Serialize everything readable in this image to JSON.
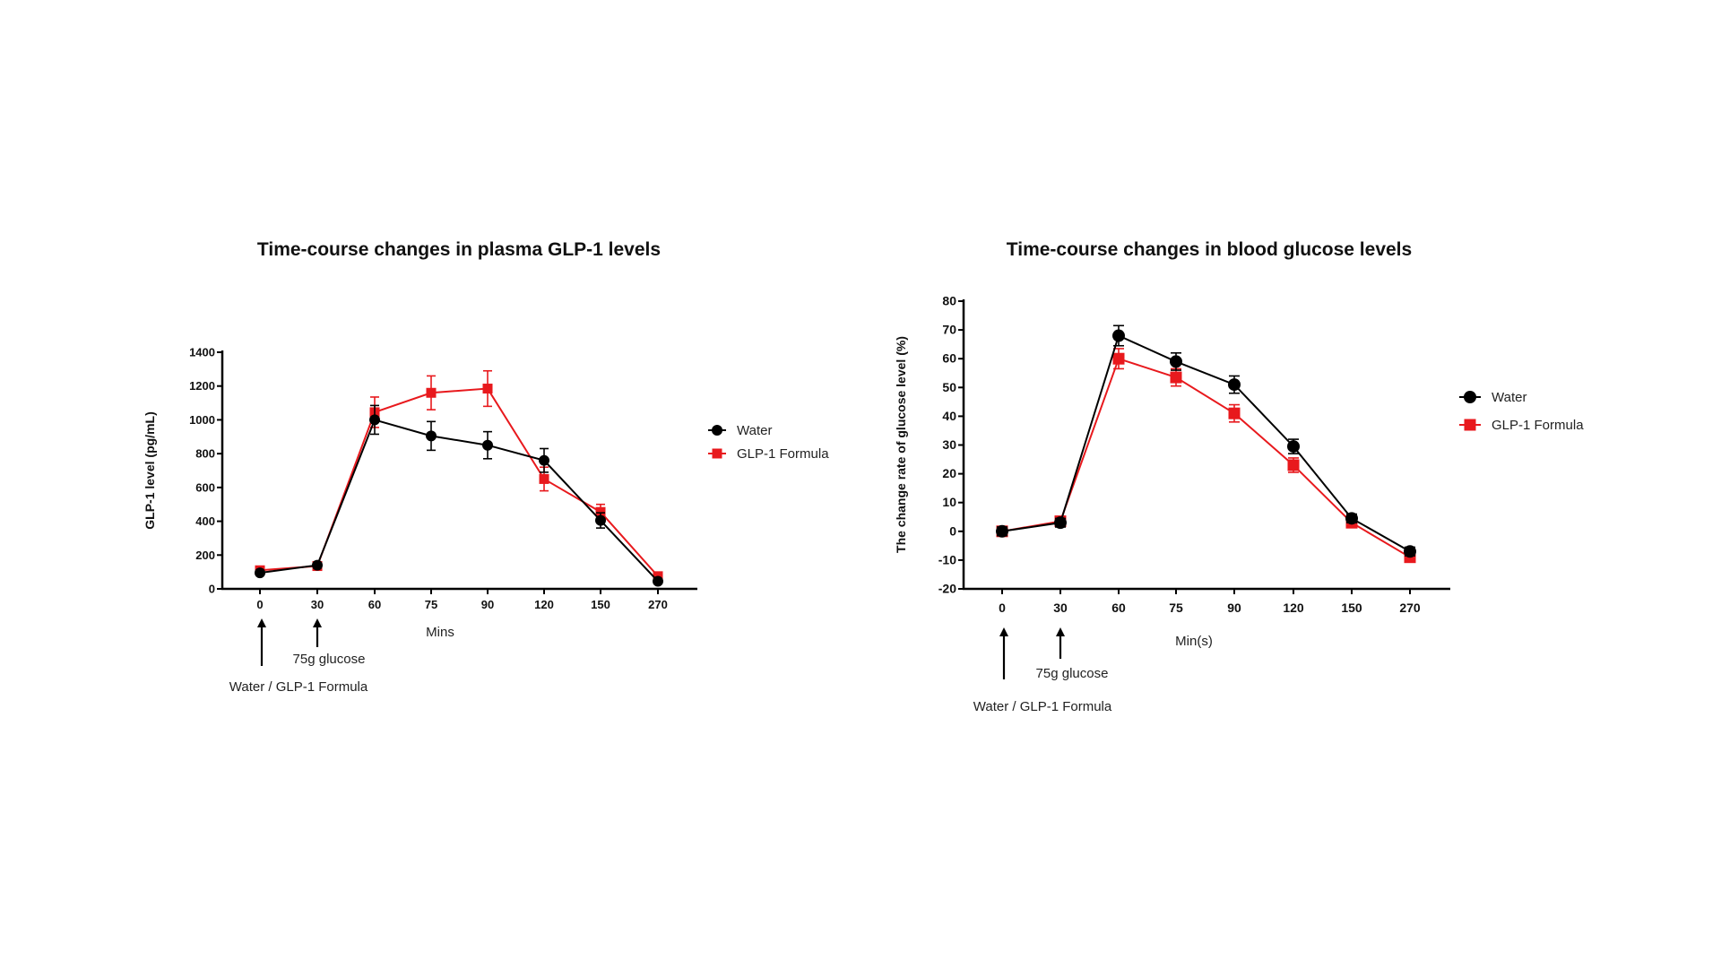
{
  "chart_data": [
    {
      "type": "line",
      "title": "Time-course changes in plasma GLP-1 levels",
      "xlabel": "Mins",
      "ylabel": "GLP-1 level (pg/mL)",
      "categories": [
        "0",
        "30",
        "60",
        "75",
        "90",
        "120",
        "150",
        "270"
      ],
      "ylim": [
        0,
        1400
      ],
      "yticks": [
        0,
        200,
        400,
        600,
        800,
        1000,
        1200,
        1400
      ],
      "grid": false,
      "legend_position": "right",
      "series": [
        {
          "name": "Water",
          "color": "#000000",
          "marker": "circle",
          "values": [
            95,
            140,
            1000,
            905,
            850,
            760,
            405,
            45
          ],
          "errors": [
            15,
            15,
            85,
            85,
            80,
            70,
            45,
            10
          ]
        },
        {
          "name": "GLP-1 Formula",
          "color": "#e8191d",
          "marker": "square",
          "values": [
            110,
            135,
            1045,
            1160,
            1185,
            650,
            455,
            75
          ],
          "errors": [
            15,
            15,
            90,
            100,
            105,
            70,
            45,
            15
          ]
        }
      ],
      "annotations": [
        "75g glucose",
        "Water / GLP-1 Formula"
      ]
    },
    {
      "type": "line",
      "title": "Time-course changes in blood glucose levels",
      "xlabel": "Min(s)",
      "ylabel": "The change rate of glucose level (%)",
      "categories": [
        "0",
        "30",
        "60",
        "75",
        "90",
        "120",
        "150",
        "270"
      ],
      "ylim": [
        -20,
        80
      ],
      "yticks": [
        -20,
        -10,
        0,
        10,
        20,
        30,
        40,
        50,
        60,
        70,
        80
      ],
      "grid": false,
      "legend_position": "right",
      "series": [
        {
          "name": "Water",
          "color": "#000000",
          "marker": "circle",
          "values": [
            0,
            3,
            68,
            59,
            51,
            29.5,
            4.5,
            -7
          ],
          "errors": [
            1.5,
            1.5,
            3.5,
            3,
            3,
            2.5,
            1.5,
            1.5
          ]
        },
        {
          "name": "GLP-1 Formula",
          "color": "#e8191d",
          "marker": "square",
          "values": [
            0,
            3.5,
            60,
            53.5,
            41,
            23,
            3,
            -9
          ],
          "errors": [
            1.5,
            1.5,
            3.5,
            3,
            3,
            2.5,
            1.5,
            1.5
          ]
        }
      ],
      "annotations": [
        "75g glucose",
        "Water / GLP-1 Formula"
      ]
    }
  ]
}
